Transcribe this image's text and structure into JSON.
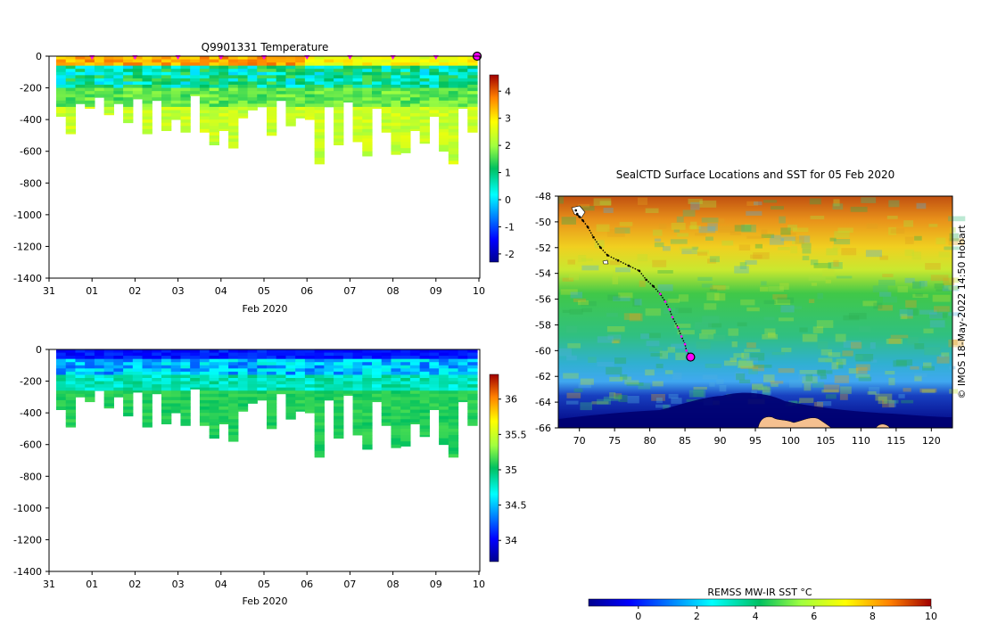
{
  "figure": {
    "chart_data": [
      {
        "type": "heatmap",
        "title": "Q9901331  Temperature",
        "xlabel": "Feb 2020",
        "ylabel": "",
        "ylim": [
          -1400,
          0
        ],
        "yticks": [
          "0",
          "-200",
          "-400",
          "-600",
          "-800",
          "-1000",
          "-1200",
          "-1400"
        ],
        "xticks": [
          "31",
          "01",
          "02",
          "03",
          "04",
          "05",
          "06",
          "07",
          "08",
          "09",
          "10"
        ],
        "colorbar": {
          "min": -2.3,
          "max": 4.6,
          "ticks": [
            "4",
            "3",
            "2",
            "1",
            "0",
            "-1",
            "-2"
          ]
        },
        "profile_depths_m": [
          380,
          490,
          300,
          330,
          260,
          370,
          300,
          420,
          270,
          490,
          280,
          470,
          400,
          480,
          250,
          480,
          560,
          470,
          580,
          390,
          340,
          320,
          500,
          280,
          440,
          390,
          400,
          680,
          320,
          560,
          290,
          540,
          630,
          330,
          480,
          620,
          610,
          470,
          550,
          380,
          600,
          680,
          330,
          480
        ],
        "markers_days": [
          1,
          2,
          3,
          4,
          5,
          6,
          7,
          8,
          9
        ],
        "last_marker_day": 10
      },
      {
        "type": "heatmap",
        "title": "",
        "xlabel": "Feb 2020",
        "ylabel": "",
        "ylim": [
          -1400,
          0
        ],
        "yticks": [
          "0",
          "-200",
          "-400",
          "-600",
          "-800",
          "-1000",
          "-1200",
          "-1400"
        ],
        "xticks": [
          "31",
          "01",
          "02",
          "03",
          "04",
          "05",
          "06",
          "07",
          "08",
          "09",
          "10"
        ],
        "colorbar": {
          "min": 33.7,
          "max": 36.35,
          "ticks": [
            "36",
            "35.5",
            "35",
            "34.5",
            "34"
          ]
        }
      },
      {
        "type": "heatmap",
        "title": "SealCTD Surface Locations and SST for 05 Feb 2020",
        "xlabel": "",
        "ylabel": "",
        "xlim": [
          67,
          123
        ],
        "ylim": [
          -66,
          -48
        ],
        "xticks": [
          "70",
          "75",
          "80",
          "85",
          "90",
          "95",
          "100",
          "105",
          "110",
          "115",
          "120"
        ],
        "yticks": [
          "-48",
          "-50",
          "-52",
          "-54",
          "-56",
          "-58",
          "-60",
          "-62",
          "-64",
          "-66"
        ],
        "track": {
          "lon": [
            69.5,
            69.7,
            70,
            70.5,
            71.2,
            72,
            73,
            74,
            75.5,
            77,
            78.5,
            79.5,
            80.5,
            81.5,
            82.2,
            82.8,
            83.2,
            84,
            84.5,
            85.0,
            85.2,
            85.6,
            85.8
          ],
          "lat": [
            -49.1,
            -49.4,
            -49.6,
            -49.9,
            -50.4,
            -51.2,
            -52.0,
            -52.6,
            -53.0,
            -53.4,
            -53.8,
            -54.5,
            -55.0,
            -55.6,
            -56.2,
            -56.8,
            -57.4,
            -58.2,
            -58.9,
            -59.5,
            -60.0,
            -60.3,
            -60.5
          ]
        },
        "last_position": {
          "lon": 85.8,
          "lat": -60.5
        },
        "credit": "© IMOS 18-May-2022 14:50 Hobart"
      }
    ],
    "sst_colorbar": {
      "label": "REMSS MW-IR SST °C",
      "min": -1.7,
      "max": 10.0,
      "ticks": [
        "0",
        "2",
        "4",
        "6",
        "8",
        "10"
      ]
    }
  }
}
